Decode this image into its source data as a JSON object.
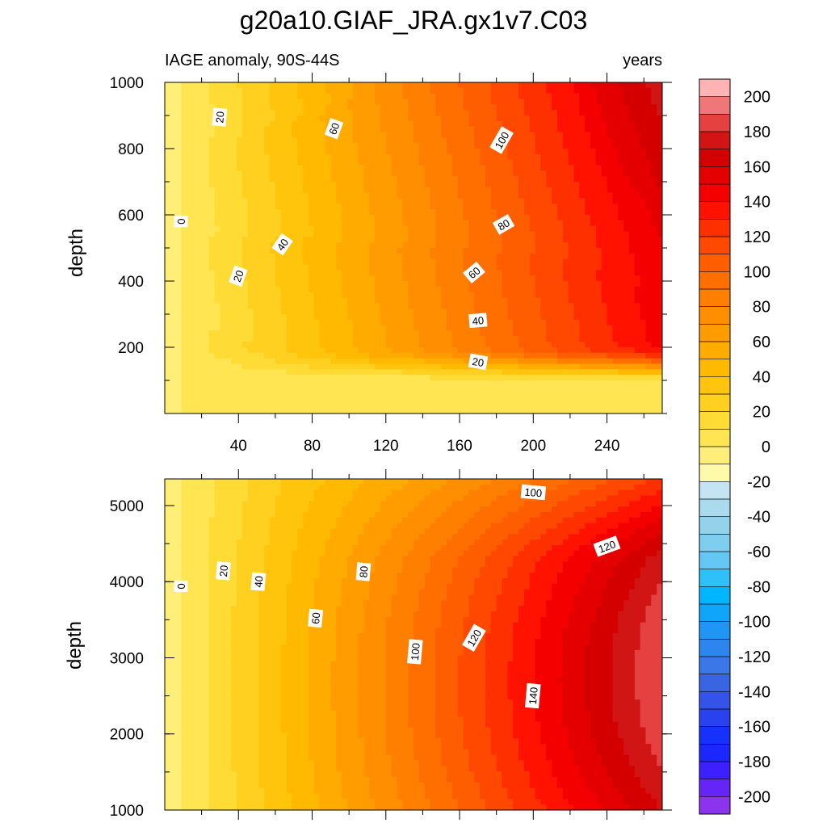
{
  "title": "g20a10.GIAF_JRA.gx1v7.C03",
  "subtitle_left": "IAGE anomaly, 90S-44S",
  "subtitle_right": "years",
  "colorbar": {
    "labels": [
      "200",
      "180",
      "160",
      "140",
      "120",
      "100",
      "80",
      "60",
      "40",
      "20",
      "0",
      "-20",
      "-40",
      "-60",
      "-80",
      "-100",
      "-120",
      "-140",
      "-160",
      "-180",
      "-200"
    ],
    "colors": [
      "#ffb3b3",
      "#ef7777",
      "#e54141",
      "#d11515",
      "#d40000",
      "#e50000",
      "#f50000",
      "#ff1200",
      "#ff3000",
      "#ff4800",
      "#ff5e00",
      "#ff6f00",
      "#ff7f00",
      "#ff8e00",
      "#ff9d00",
      "#ffab00",
      "#ffb900",
      "#ffc50d",
      "#ffd020",
      "#ffdb35",
      "#ffe551",
      "#ffef79",
      "#fffaa9",
      "#c4e4f3",
      "#aadaee",
      "#94d2eb",
      "#7fcdef",
      "#65c7f4",
      "#2ec0f8",
      "#00b7ff",
      "#0ea5fb",
      "#1f96f6",
      "#2d86ee",
      "#3b77e6",
      "#3a65e2",
      "#3553e8",
      "#2842f0",
      "#1531fb",
      "#1b27ff",
      "#3d1fff",
      "#6525f4",
      "#8b33ee"
    ]
  },
  "chart_data": [
    {
      "type": "contour",
      "panel": "upper",
      "ylabel": "depth",
      "xlabel": "",
      "xlim": [
        0,
        270
      ],
      "ylim": [
        1000,
        0
      ],
      "xticks": [
        "40",
        "80",
        "120",
        "160",
        "200",
        "240"
      ],
      "yticks": [
        "200",
        "400",
        "600",
        "800",
        "1000"
      ],
      "contour_interval": 10,
      "data_range": [
        -10,
        180
      ],
      "contour_labels": [
        {
          "text": "20",
          "x": 170,
          "y": 155,
          "angle": 10
        },
        {
          "text": "40",
          "x": 170,
          "y": 280,
          "angle": -5
        },
        {
          "text": "60",
          "x": 168,
          "y": 425,
          "angle": -40
        },
        {
          "text": "80",
          "x": 184,
          "y": 570,
          "angle": -30
        },
        {
          "text": "100",
          "x": 183,
          "y": 825,
          "angle": -60
        },
        {
          "text": "20",
          "x": 40,
          "y": 415,
          "angle": -70
        },
        {
          "text": "40",
          "x": 64,
          "y": 510,
          "angle": -55
        },
        {
          "text": "60",
          "x": 92,
          "y": 860,
          "angle": -70
        },
        {
          "text": "20",
          "x": 30,
          "y": 895,
          "angle": -85
        },
        {
          "text": "0",
          "x": 9,
          "y": 580,
          "angle": -90
        }
      ]
    },
    {
      "type": "contour",
      "panel": "lower",
      "ylabel": "depth",
      "xlabel": "",
      "xlim": [
        0,
        270
      ],
      "ylim": [
        5350,
        1000
      ],
      "xticks": [],
      "yticks": [
        "1000",
        "2000",
        "3000",
        "4000",
        "5000"
      ],
      "contour_interval": 10,
      "data_range": [
        -10,
        200
      ],
      "contour_labels": [
        {
          "text": "140",
          "x": 200,
          "y": 2500,
          "angle": -85
        },
        {
          "text": "100",
          "x": 136,
          "y": 3080,
          "angle": -85
        },
        {
          "text": "120",
          "x": 168,
          "y": 3260,
          "angle": -60
        },
        {
          "text": "60",
          "x": 82,
          "y": 3520,
          "angle": -85
        },
        {
          "text": "0",
          "x": 9,
          "y": 3940,
          "angle": -90
        },
        {
          "text": "20",
          "x": 32,
          "y": 4140,
          "angle": -85
        },
        {
          "text": "40",
          "x": 51,
          "y": 4000,
          "angle": -85
        },
        {
          "text": "80",
          "x": 108,
          "y": 4130,
          "angle": -85
        },
        {
          "text": "120",
          "x": 240,
          "y": 4460,
          "angle": -20
        },
        {
          "text": "100",
          "x": 200,
          "y": 5170,
          "angle": 5
        }
      ]
    }
  ]
}
